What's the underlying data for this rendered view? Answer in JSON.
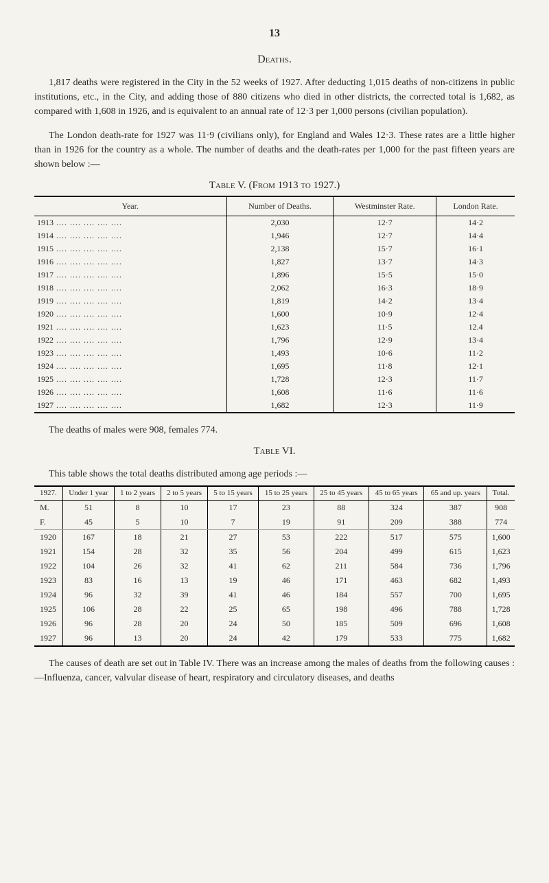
{
  "page_number": "13",
  "section_title": "Deaths.",
  "paragraphs": {
    "p1": "1,817 deaths were registered in the City in the 52 weeks of 1927. After deducting 1,015 deaths of non-citizens in public institutions, etc., in the City, and adding those of 880 citizens who died in other districts, the corrected total is 1,682, as compared with 1,608 in 1926, and is equivalent to an annual rate of 12·3 per 1,000 persons (civilian population).",
    "p2": "The London death-rate for 1927 was 11·9 (civilians only), for England and Wales 12·3. These rates are a little higher than in 1926 for the country as a whole. The number of deaths and the death-rates per 1,000 for the past fifteen years are shown below :—",
    "between_tables": "The deaths of males were 908, females 774.",
    "table_vi_intro": "This table shows the total deaths distributed among age periods :—",
    "closing": "The causes of death are set out in Table IV. There was an increase among the males of deaths from the following causes :—Influenza, cancer, valvular disease of heart, respiratory and circulatory diseases, and deaths"
  },
  "table_v": {
    "caption": "Table V. (From 1913 to 1927.)",
    "headers": [
      "Year.",
      "Number of Deaths.",
      "Westminster Rate.",
      "London Rate."
    ],
    "rows": [
      [
        "1913",
        "2,030",
        "12·7",
        "14·2"
      ],
      [
        "1914",
        "1,946",
        "12·7",
        "14·4"
      ],
      [
        "1915",
        "2,138",
        "15·7",
        "16·1"
      ],
      [
        "1916",
        "1,827",
        "13·7",
        "14·3"
      ],
      [
        "1917",
        "1,896",
        "15·5",
        "15·0"
      ],
      [
        "1918",
        "2,062",
        "16·3",
        "18·9"
      ],
      [
        "1919",
        "1,819",
        "14·2",
        "13·4"
      ],
      [
        "1920",
        "1,600",
        "10·9",
        "12·4"
      ],
      [
        "1921",
        "1,623",
        "11·5",
        "12.4"
      ],
      [
        "1922",
        "1,796",
        "12·9",
        "13·4"
      ],
      [
        "1923",
        "1,493",
        "10·6",
        "11·2"
      ],
      [
        "1924",
        "1,695",
        "11·8",
        "12·1"
      ],
      [
        "1925",
        "1,728",
        "12·3",
        "11·7"
      ],
      [
        "1926",
        "1,608",
        "11·6",
        "11·6"
      ],
      [
        "1927",
        "1,682",
        "12·3",
        "11·9"
      ]
    ]
  },
  "table_vi": {
    "caption": "Table VI.",
    "headers": [
      "1927.",
      "Under 1 year",
      "1 to 2 years",
      "2 to 5 years",
      "5 to 15 years",
      "15 to 25 years",
      "25 to 45 years",
      "45 to 65 years",
      "65 and up. years",
      "Total."
    ],
    "summary_rows": [
      [
        "M.",
        "51",
        "8",
        "10",
        "17",
        "23",
        "88",
        "324",
        "387",
        "908"
      ],
      [
        "F.",
        "45",
        "5",
        "10",
        "7",
        "19",
        "91",
        "209",
        "388",
        "774"
      ]
    ],
    "year_rows": [
      [
        "1920",
        "167",
        "18",
        "21",
        "27",
        "53",
        "222",
        "517",
        "575",
        "1,600"
      ],
      [
        "1921",
        "154",
        "28",
        "32",
        "35",
        "56",
        "204",
        "499",
        "615",
        "1,623"
      ],
      [
        "1922",
        "104",
        "26",
        "32",
        "41",
        "62",
        "211",
        "584",
        "736",
        "1,796"
      ],
      [
        "1923",
        "83",
        "16",
        "13",
        "19",
        "46",
        "171",
        "463",
        "682",
        "1,493"
      ],
      [
        "1924",
        "96",
        "32",
        "39",
        "41",
        "46",
        "184",
        "557",
        "700",
        "1,695"
      ],
      [
        "1925",
        "106",
        "28",
        "22",
        "25",
        "65",
        "198",
        "496",
        "788",
        "1,728"
      ],
      [
        "1926",
        "96",
        "28",
        "20",
        "24",
        "50",
        "185",
        "509",
        "696",
        "1,608"
      ],
      [
        "1927",
        "96",
        "13",
        "20",
        "24",
        "42",
        "179",
        "533",
        "775",
        "1,682"
      ]
    ]
  }
}
